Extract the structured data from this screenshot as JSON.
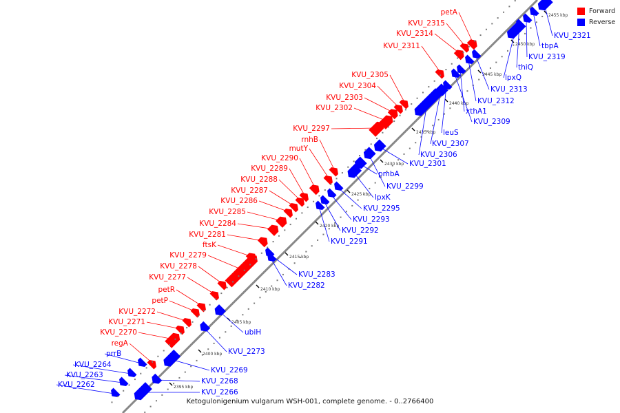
{
  "caption": "Ketogulonigenium vulgarum WSH-001, complete genome. - 0..2766400",
  "legend": [
    {
      "label": "Forward",
      "color": "#ff0000"
    },
    {
      "label": "Reverse",
      "color": "#0000ff"
    }
  ],
  "colors": {
    "forward": "#ff0000",
    "reverse": "#0000ff",
    "backbone": "#888888"
  },
  "scale_unit": "kbp",
  "ticks": [
    "2395 kbp",
    "2400 kbp",
    "2405 kbp",
    "2410 kbp",
    "2415 kbp",
    "2420 kbp",
    "2425 kbp",
    "2430 kbp",
    "2435 kbp",
    "2440 kbp",
    "2445 kbp",
    "2450 kbp",
    "2455 kbp"
  ],
  "genes": [
    {
      "name": "KVU_2262",
      "strand": "reverse"
    },
    {
      "name": "KVU_2263",
      "strand": "reverse"
    },
    {
      "name": "KVU_2264",
      "strand": "reverse"
    },
    {
      "name": "prrB",
      "strand": "reverse"
    },
    {
      "name": "regA",
      "strand": "forward"
    },
    {
      "name": "KVU_2266",
      "strand": "reverse"
    },
    {
      "name": "KVU_2268",
      "strand": "reverse"
    },
    {
      "name": "KVU_2269",
      "strand": "reverse"
    },
    {
      "name": "KVU_2270",
      "strand": "forward"
    },
    {
      "name": "KVU_2271",
      "strand": "forward"
    },
    {
      "name": "KVU_2272",
      "strand": "forward"
    },
    {
      "name": "KVU_2273",
      "strand": "reverse"
    },
    {
      "name": "petP",
      "strand": "forward"
    },
    {
      "name": "petR",
      "strand": "forward"
    },
    {
      "name": "ubiH",
      "strand": "reverse"
    },
    {
      "name": "KVU_2277",
      "strand": "forward"
    },
    {
      "name": "KVU_2278",
      "strand": "forward"
    },
    {
      "name": "KVU_2279",
      "strand": "forward"
    },
    {
      "name": "ftsK",
      "strand": "forward"
    },
    {
      "name": "KVU_2281",
      "strand": "forward"
    },
    {
      "name": "KVU_2282",
      "strand": "reverse"
    },
    {
      "name": "KVU_2283",
      "strand": "reverse"
    },
    {
      "name": "KVU_2284",
      "strand": "forward"
    },
    {
      "name": "KVU_2285",
      "strand": "forward"
    },
    {
      "name": "KVU_2286",
      "strand": "forward"
    },
    {
      "name": "KVU_2287",
      "strand": "forward"
    },
    {
      "name": "KVU_2288",
      "strand": "forward"
    },
    {
      "name": "KVU_2289",
      "strand": "forward"
    },
    {
      "name": "KVU_2290",
      "strand": "forward"
    },
    {
      "name": "KVU_2291",
      "strand": "reverse"
    },
    {
      "name": "KVU_2292",
      "strand": "reverse"
    },
    {
      "name": "KVU_2293",
      "strand": "reverse"
    },
    {
      "name": "mutY",
      "strand": "forward"
    },
    {
      "name": "KVU_2295",
      "strand": "reverse"
    },
    {
      "name": "lpxK",
      "strand": "reverse"
    },
    {
      "name": "rnhB",
      "strand": "forward"
    },
    {
      "name": "KVU_2297",
      "strand": "forward"
    },
    {
      "name": "pmbA",
      "strand": "reverse"
    },
    {
      "name": "KVU_2299",
      "strand": "reverse"
    },
    {
      "name": "KVU_2301",
      "strand": "reverse"
    },
    {
      "name": "KVU_2302",
      "strand": "forward"
    },
    {
      "name": "KVU_2303",
      "strand": "forward"
    },
    {
      "name": "KVU_2304",
      "strand": "forward"
    },
    {
      "name": "KVU_2305",
      "strand": "forward"
    },
    {
      "name": "KVU_2306",
      "strand": "reverse"
    },
    {
      "name": "KVU_2307",
      "strand": "reverse"
    },
    {
      "name": "leuS",
      "strand": "reverse"
    },
    {
      "name": "KVU_2309",
      "strand": "reverse"
    },
    {
      "name": "xthA1",
      "strand": "reverse"
    },
    {
      "name": "KVU_2311",
      "strand": "forward"
    },
    {
      "name": "KVU_2312",
      "strand": "reverse"
    },
    {
      "name": "KVU_2313",
      "strand": "reverse"
    },
    {
      "name": "KVU_2314",
      "strand": "forward"
    },
    {
      "name": "KVU_2315",
      "strand": "forward"
    },
    {
      "name": "lpxQ",
      "strand": "reverse"
    },
    {
      "name": "thiQ",
      "strand": "reverse"
    },
    {
      "name": "KVU_2319",
      "strand": "reverse"
    },
    {
      "name": "tbpA",
      "strand": "reverse"
    },
    {
      "name": "petA",
      "strand": "forward"
    },
    {
      "name": "KVU_2321",
      "strand": "reverse"
    }
  ]
}
